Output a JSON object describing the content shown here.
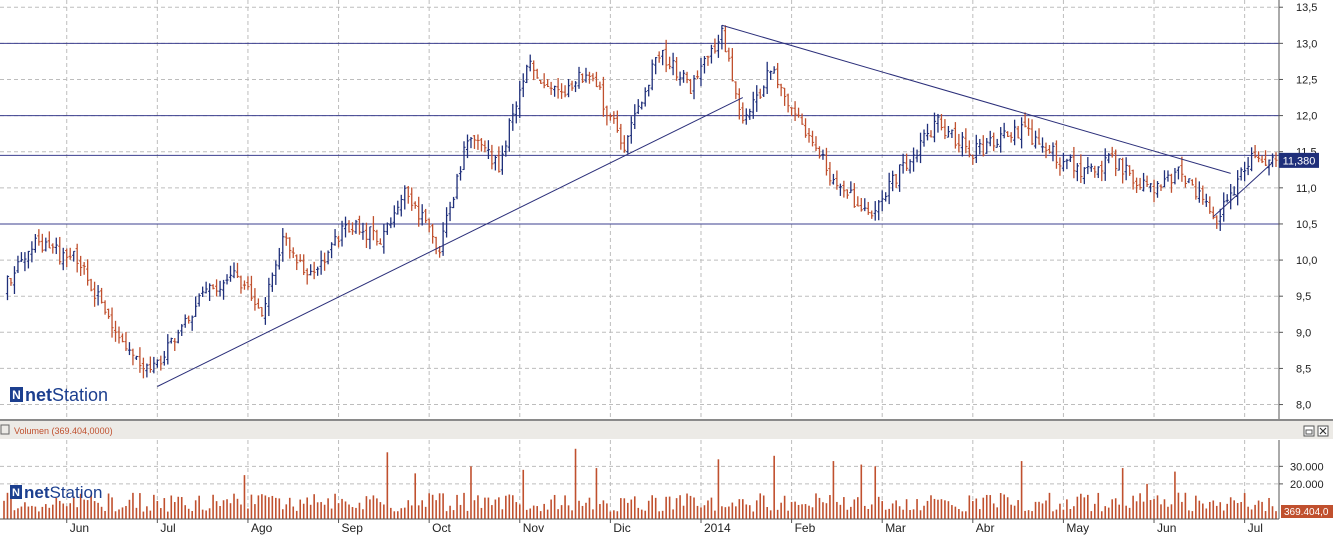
{
  "chart_data": [
    {
      "type": "ohlc-bar",
      "title": "",
      "ylim": [
        7.8,
        13.6
      ],
      "y_ticks": [
        "13,5",
        "13,0",
        "12,5",
        "12,0",
        "11,5",
        "11,0",
        "10,5",
        "10,0",
        "9,5",
        "9,0",
        "8,5",
        "8,0"
      ],
      "y_tick_values": [
        13.5,
        13.0,
        12.5,
        12.0,
        11.5,
        11.0,
        10.5,
        10.0,
        9.5,
        9.0,
        8.5,
        8.0
      ],
      "x_tick_labels": [
        "Jun",
        "Jul",
        "Ago",
        "Sep",
        "Oct",
        "Nov",
        "Dic",
        "2014",
        "Feb",
        "Mar",
        "Abr",
        "May",
        "Jun",
        "Jul"
      ],
      "last_price_label": "11,380",
      "last_price": 11.38,
      "horizontal_levels": [
        13.0,
        12.0,
        11.45,
        10.5
      ],
      "key_points": [
        {
          "t": 0,
          "close": 9.6
        },
        {
          "t": 9,
          "close": 10.2
        },
        {
          "t": 21,
          "close": 10.0
        },
        {
          "t": 30,
          "close": 9.2
        },
        {
          "t": 40,
          "close": 8.4
        },
        {
          "t": 45,
          "close": 8.6
        },
        {
          "t": 55,
          "close": 9.4
        },
        {
          "t": 65,
          "close": 9.8
        },
        {
          "t": 74,
          "close": 9.3
        },
        {
          "t": 80,
          "close": 10.3
        },
        {
          "t": 88,
          "close": 9.8
        },
        {
          "t": 98,
          "close": 10.5
        },
        {
          "t": 108,
          "close": 10.3
        },
        {
          "t": 115,
          "close": 10.9
        },
        {
          "t": 125,
          "close": 10.2
        },
        {
          "t": 133,
          "close": 11.7
        },
        {
          "t": 142,
          "close": 11.3
        },
        {
          "t": 150,
          "close": 12.7
        },
        {
          "t": 158,
          "close": 12.3
        },
        {
          "t": 168,
          "close": 12.6
        },
        {
          "t": 178,
          "close": 11.6
        },
        {
          "t": 188,
          "close": 12.9
        },
        {
          "t": 197,
          "close": 12.4
        },
        {
          "t": 206,
          "close": 13.15
        },
        {
          "t": 212,
          "close": 11.9
        },
        {
          "t": 220,
          "close": 12.6
        },
        {
          "t": 228,
          "close": 12.0
        },
        {
          "t": 237,
          "close": 11.2
        },
        {
          "t": 249,
          "close": 10.6
        },
        {
          "t": 258,
          "close": 11.3
        },
        {
          "t": 268,
          "close": 11.9
        },
        {
          "t": 278,
          "close": 11.5
        },
        {
          "t": 292,
          "close": 11.8
        },
        {
          "t": 300,
          "close": 11.5
        },
        {
          "t": 310,
          "close": 11.2
        },
        {
          "t": 318,
          "close": 11.4
        },
        {
          "t": 328,
          "close": 11.0
        },
        {
          "t": 338,
          "close": 11.2
        },
        {
          "t": 348,
          "close": 10.6
        },
        {
          "t": 358,
          "close": 11.38
        }
      ],
      "trend_lines": [
        {
          "from": {
            "t": 44,
            "v": 8.25
          },
          "to": {
            "t": 212,
            "v": 12.25
          }
        },
        {
          "from": {
            "t": 206,
            "v": 13.25
          },
          "to": {
            "t": 352,
            "v": 11.2
          }
        },
        {
          "from": {
            "t": 347,
            "v": 10.6
          },
          "to": {
            "t": 364,
            "v": 11.35
          }
        }
      ]
    },
    {
      "type": "bar",
      "title": "Volumen (369.404,0000)",
      "y_ticks": [
        "30.000",
        "20.000"
      ],
      "y_tick_values": [
        30000,
        20000
      ],
      "ylim": [
        0,
        45000
      ],
      "last_value_label": "369.404,0",
      "x_tick_labels": [
        "Jun",
        "Jul",
        "Ago",
        "Sep",
        "Oct",
        "Nov",
        "Dic",
        "2014",
        "Feb",
        "Mar",
        "Abr",
        "May",
        "Jun",
        "Jul"
      ],
      "typical_volume": 12000,
      "spikes": [
        {
          "t": 69,
          "value": 25000
        },
        {
          "t": 110,
          "value": 38000
        },
        {
          "t": 118,
          "value": 26000
        },
        {
          "t": 134,
          "value": 30000
        },
        {
          "t": 149,
          "value": 28000
        },
        {
          "t": 164,
          "value": 40000
        },
        {
          "t": 170,
          "value": 29000
        },
        {
          "t": 205,
          "value": 34000
        },
        {
          "t": 221,
          "value": 36000
        },
        {
          "t": 238,
          "value": 33000
        },
        {
          "t": 246,
          "value": 31000
        },
        {
          "t": 250,
          "value": 30000
        },
        {
          "t": 292,
          "value": 33000
        },
        {
          "t": 321,
          "value": 29000
        },
        {
          "t": 328,
          "value": 20000
        },
        {
          "t": 336,
          "value": 27000
        }
      ]
    }
  ],
  "branding": {
    "logo_text_part1": "net",
    "logo_text_part2": "Station",
    "logo_mark": "N"
  },
  "colors": {
    "up_bar": "#1f2f7a",
    "down_bar": "#c0502e",
    "grid": "#bdbdbd",
    "level_line": "#3b3f8f",
    "trend_line": "#2b2f7a",
    "volume_bar": "#c0502e",
    "price_tag_bg": "#1f2f7a",
    "separator": "#8a8a8a",
    "panel_header_bg": "#eceae6",
    "logo_blue": "#1c3f8f"
  }
}
